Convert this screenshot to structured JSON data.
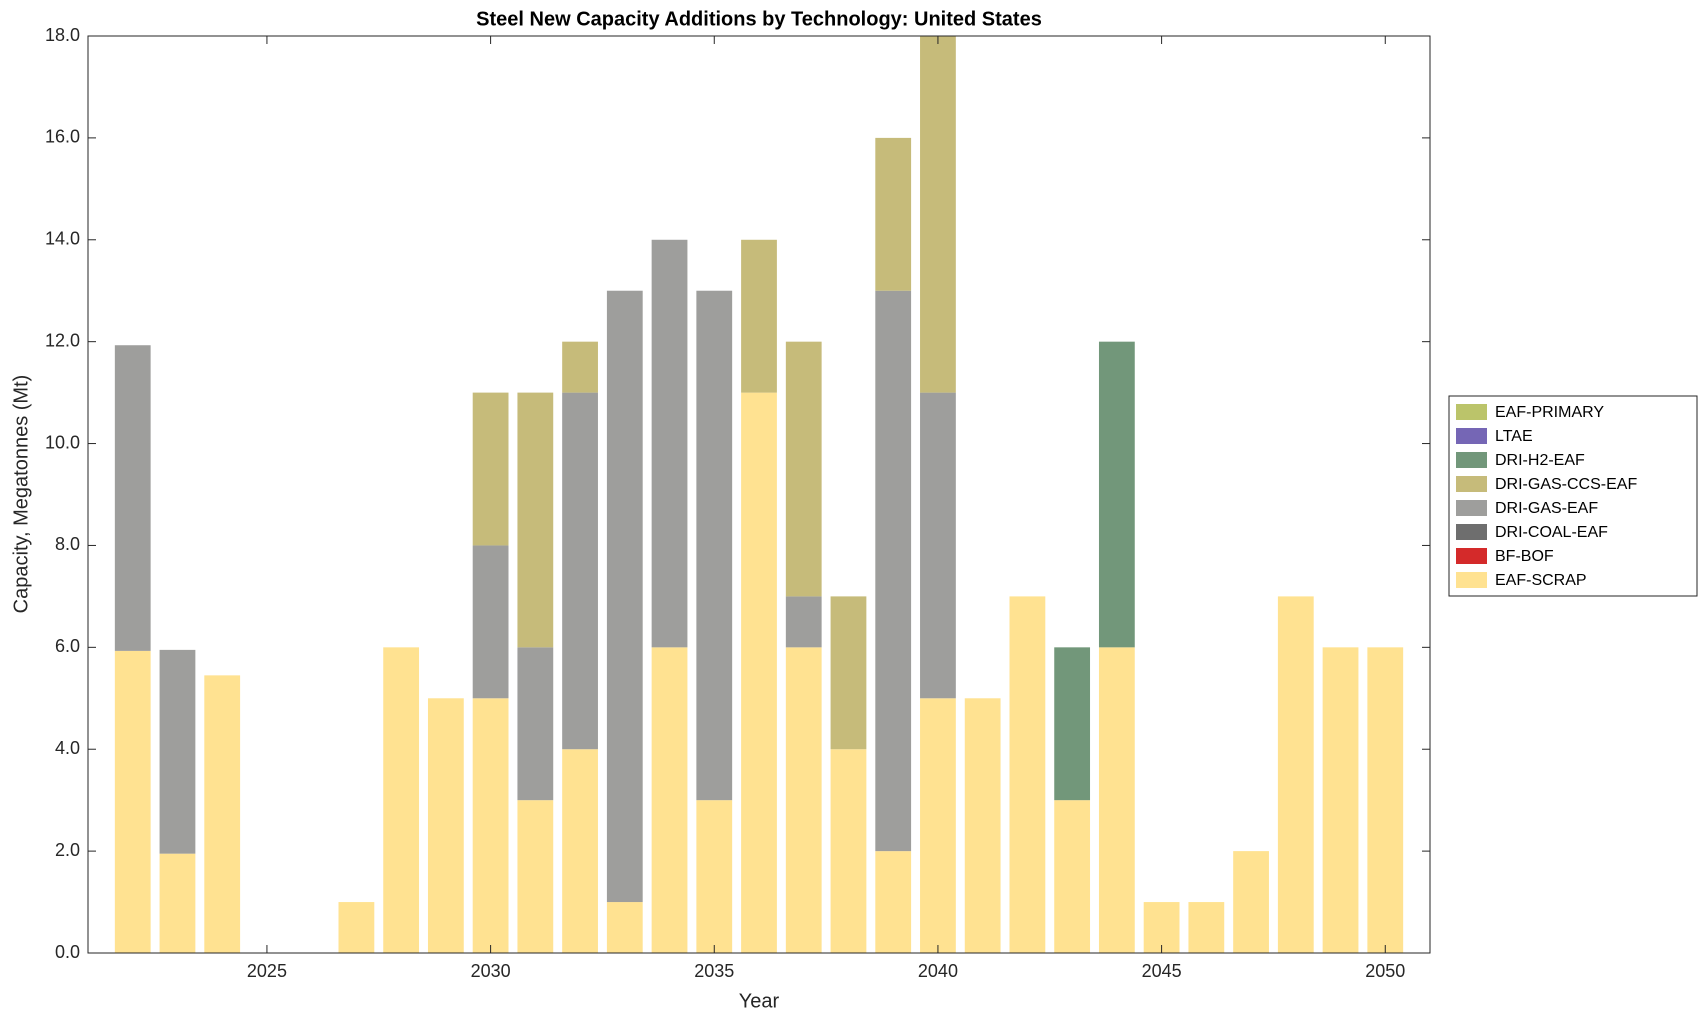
{
  "chart_data": {
    "type": "stacked_bar",
    "title": "Steel New Capacity Additions by Technology: United States",
    "x_label": "Year",
    "y_label": "Capacity, Megatonnes (Mt)",
    "x": [
      2022,
      2023,
      2024,
      2025,
      2026,
      2027,
      2028,
      2029,
      2030,
      2031,
      2032,
      2033,
      2034,
      2035,
      2036,
      2037,
      2038,
      2039,
      2040,
      2041,
      2042,
      2043,
      2044,
      2045,
      2046,
      2047,
      2048,
      2049,
      2050
    ],
    "series": [
      {
        "name": "EAF-SCRAP",
        "color": "#FFE291",
        "values": [
          5.93,
          1.95,
          5.45,
          0,
          0,
          1,
          6,
          5,
          5,
          3,
          4,
          1,
          6,
          3,
          11,
          6,
          4,
          2,
          5,
          5,
          7,
          3,
          6,
          1,
          1,
          2,
          7,
          6,
          6
        ]
      },
      {
        "name": "BF-BOF",
        "color": "#D42A2A",
        "values": [
          0,
          0,
          0,
          0,
          0,
          0,
          0,
          0,
          0,
          0,
          0,
          0,
          0,
          0,
          0,
          0,
          0,
          0,
          0,
          0,
          0,
          0,
          0,
          0,
          0,
          0,
          0,
          0,
          0
        ]
      },
      {
        "name": "DRI-COAL-EAF",
        "color": "#6E6E6E",
        "values": [
          0,
          0,
          0,
          0,
          0,
          0,
          0,
          0,
          0,
          0,
          0,
          0,
          0,
          0,
          0,
          0,
          0,
          0,
          0,
          0,
          0,
          0,
          0,
          0,
          0,
          0,
          0,
          0,
          0
        ]
      },
      {
        "name": "DRI-GAS-EAF",
        "color": "#9E9E9C",
        "values": [
          6,
          4,
          0,
          0,
          0,
          0,
          0,
          0,
          3,
          3,
          7,
          12,
          8,
          10,
          0,
          1,
          0,
          11,
          6,
          0,
          0,
          0,
          0,
          0,
          0,
          0,
          0,
          0,
          0
        ]
      },
      {
        "name": "DRI-GAS-CCS-EAF",
        "color": "#C6BB7A",
        "values": [
          0,
          0,
          0,
          0,
          0,
          0,
          0,
          0,
          3,
          5,
          1,
          0,
          0,
          0,
          3,
          5,
          3,
          3,
          7,
          0,
          0,
          0,
          0,
          0,
          0,
          0,
          0,
          0,
          0
        ]
      },
      {
        "name": "DRI-H2-EAF",
        "color": "#72977A",
        "values": [
          0,
          0,
          0,
          0,
          0,
          0,
          0,
          0,
          0,
          0,
          0,
          0,
          0,
          0,
          0,
          0,
          0,
          0,
          0,
          0,
          0,
          3,
          6,
          0,
          0,
          0,
          0,
          0,
          0
        ]
      },
      {
        "name": "LTAE",
        "color": "#7566B5",
        "values": [
          0,
          0,
          0,
          0,
          0,
          0,
          0,
          0,
          0,
          0,
          0,
          0,
          0,
          0,
          0,
          0,
          0,
          0,
          0,
          0,
          0,
          0,
          0,
          0,
          0,
          0,
          0,
          0,
          0
        ]
      },
      {
        "name": "EAF-PRIMARY",
        "color": "#BBC46A",
        "values": [
          0,
          0,
          0,
          0,
          0,
          0,
          0,
          0,
          0,
          0,
          0,
          0,
          0,
          0,
          0,
          0,
          0,
          0,
          0,
          0,
          0,
          0,
          0,
          0,
          0,
          0,
          0,
          0,
          0
        ]
      }
    ],
    "xlim": [
      2021,
      2051
    ],
    "xticks": [
      2025,
      2030,
      2035,
      2040,
      2045,
      2050
    ],
    "ylim": [
      0,
      18
    ],
    "yticks": [
      {
        "value": 0,
        "label": "0.0"
      },
      {
        "value": 2,
        "label": "2.0"
      },
      {
        "value": 4,
        "label": "4.0"
      },
      {
        "value": 6,
        "label": "6.0"
      },
      {
        "value": 8,
        "label": "8.0"
      },
      {
        "value": 10,
        "label": "10.0"
      },
      {
        "value": 12,
        "label": "12.0"
      },
      {
        "value": 14,
        "label": "14.0"
      },
      {
        "value": 16,
        "label": "16.0"
      },
      {
        "value": 18,
        "label": "18.0"
      }
    ],
    "legend_position": "right"
  }
}
